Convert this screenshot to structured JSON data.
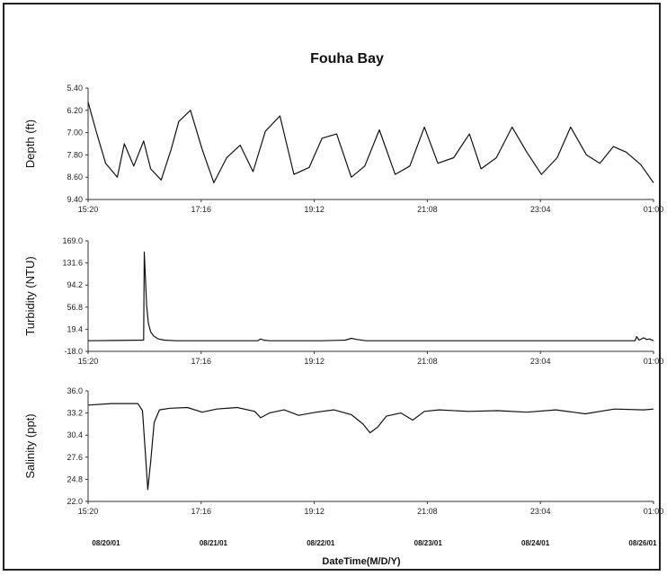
{
  "chart_data": {
    "title": "Fouha Bay",
    "xlabel": "DateTime(M/D/Y)",
    "date_labels": [
      "08/20/01",
      "08/21/01",
      "08/22/01",
      "08/23/01",
      "08/24/01",
      "08/26/01"
    ],
    "time_ticks": [
      "15:20",
      "17:16",
      "19:12",
      "21:08",
      "23:04",
      "01:00"
    ],
    "x_range_hours": [
      0,
      9.667
    ],
    "panels": [
      {
        "type": "line",
        "ylabel": "Depth (ft)",
        "yticks": [
          "5.40",
          "6.20",
          "7.00",
          "7.80",
          "8.60",
          "9.40"
        ],
        "ylim": [
          5.4,
          9.4
        ],
        "inverted": true,
        "grid": false,
        "series": [
          {
            "x": [
              0,
              0.13,
              0.3,
              0.5,
              0.62,
              0.78,
              0.95,
              1.07,
              1.25,
              1.42,
              1.55,
              1.75,
              1.95,
              2.15,
              2.37,
              2.6,
              2.82,
              3.03,
              3.28,
              3.52,
              3.78,
              4.0,
              4.25,
              4.5,
              4.73,
              4.98,
              5.25,
              5.5,
              5.75,
              5.98,
              6.25,
              6.52,
              6.72,
              6.98,
              7.25,
              7.5,
              7.75,
              8.02,
              8.25,
              8.52,
              8.75,
              8.98,
              9.2,
              9.45,
              9.667
            ],
            "y": [
              5.9,
              6.9,
              8.1,
              8.6,
              7.4,
              8.2,
              7.3,
              8.3,
              8.7,
              7.6,
              6.6,
              6.2,
              7.6,
              8.8,
              7.9,
              7.45,
              8.4,
              6.95,
              6.4,
              8.5,
              8.25,
              7.2,
              7.05,
              8.6,
              8.2,
              6.9,
              8.5,
              8.2,
              6.8,
              8.1,
              7.9,
              7.05,
              8.3,
              7.9,
              6.8,
              7.7,
              8.5,
              7.9,
              6.8,
              7.8,
              8.1,
              7.5,
              7.7,
              8.15,
              8.8
            ],
            "values_describe": "depth (ft), 0-9.667 h after 15:20"
          }
        ]
      },
      {
        "type": "line",
        "ylabel": "Turbidity (NTU)",
        "yticks": [
          "169.0",
          "131.6",
          "94.2",
          "56.8",
          "19.4",
          "-18.0"
        ],
        "ylim": [
          -18.0,
          169.0
        ],
        "inverted": false,
        "grid": false,
        "series": [
          {
            "x": [
              0,
              0.95,
              0.96,
              1.0,
              1.03,
              1.07,
              1.12,
              1.2,
              1.3,
              1.5,
              2.9,
              2.95,
              3.0,
              3.1,
              4.0,
              4.4,
              4.5,
              4.6,
              4.75,
              6.0,
              9.35,
              9.38,
              9.42,
              9.5,
              9.55,
              9.6,
              9.667
            ],
            "y": [
              0,
              1,
              150,
              60,
              30,
              15,
              8,
              3,
              1,
              0,
              0,
              3,
              1,
              0,
              0,
              1,
              4,
              2,
              0,
              0,
              0,
              7,
              1,
              5,
              2,
              3,
              0
            ],
            "values_describe": "turbidity (NTU), 0-9.667 h after 15:20"
          }
        ]
      },
      {
        "type": "line",
        "ylabel": "Salinity (ppt)",
        "yticks": [
          "36.0",
          "33.2",
          "30.4",
          "27.6",
          "24.8",
          "22.0"
        ],
        "ylim": [
          22.0,
          36.0
        ],
        "inverted": false,
        "grid": false,
        "series": [
          {
            "x": [
              0,
              0.4,
              0.85,
              0.93,
              0.98,
              1.02,
              1.07,
              1.13,
              1.22,
              1.4,
              1.7,
              1.95,
              2.2,
              2.55,
              2.85,
              2.95,
              3.1,
              3.35,
              3.6,
              3.9,
              4.2,
              4.5,
              4.7,
              4.82,
              4.95,
              5.1,
              5.35,
              5.55,
              5.75,
              6.0,
              6.5,
              7.0,
              7.5,
              8.0,
              8.5,
              9.0,
              9.5,
              9.667
            ],
            "y": [
              34.2,
              34.4,
              34.4,
              33.5,
              28.0,
              23.5,
              27.0,
              32.0,
              33.6,
              33.8,
              33.9,
              33.3,
              33.7,
              33.9,
              33.4,
              32.6,
              33.2,
              33.6,
              32.9,
              33.3,
              33.6,
              33.0,
              31.8,
              30.7,
              31.4,
              32.8,
              33.2,
              32.3,
              33.4,
              33.6,
              33.4,
              33.5,
              33.3,
              33.6,
              33.1,
              33.7,
              33.6,
              33.7
            ],
            "values_describe": "salinity (ppt), 0-9.667 h after 15:20"
          }
        ]
      }
    ]
  }
}
